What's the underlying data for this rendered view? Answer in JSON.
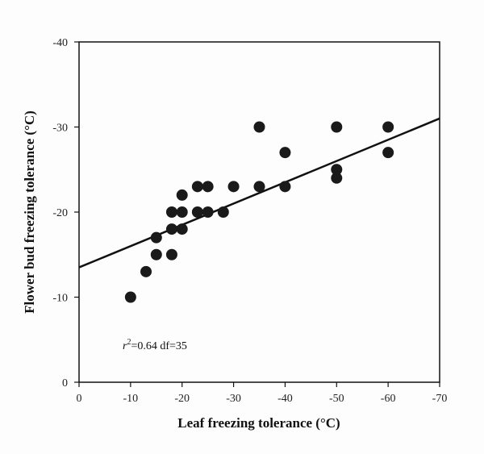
{
  "chart_data": {
    "type": "scatter",
    "xlabel": "Leaf freezing tolerance (°C)",
    "ylabel": "Flower bud freezing tolerance (°C)",
    "xlim": [
      0,
      -70
    ],
    "ylim": [
      0,
      -40
    ],
    "x_ticks": [
      "0",
      "-10",
      "-20",
      "-30",
      "-40",
      "-50",
      "-60",
      "-70"
    ],
    "x_tick_values": [
      0,
      -10,
      -20,
      -30,
      -40,
      -50,
      -60,
      -70
    ],
    "y_ticks": [
      "0",
      "-10",
      "-20",
      "-30",
      "-40"
    ],
    "y_tick_values": [
      0,
      -10,
      -20,
      -30,
      -40
    ],
    "grid": false,
    "points": {
      "x": [
        -10,
        -13,
        -15,
        -15,
        -18,
        -18,
        -18,
        -20,
        -20,
        -20,
        -23,
        -23,
        -25,
        -25,
        -28,
        -30,
        -35,
        -35,
        -40,
        -40,
        -50,
        -50,
        -50,
        -60,
        -60
      ],
      "y": [
        -10,
        -13,
        -15,
        -17,
        -15,
        -18,
        -20,
        -18,
        -20,
        -22,
        -20,
        -23,
        -20,
        -23,
        -20,
        -23,
        -30,
        -23,
        -27,
        -23,
        -30,
        -25,
        -24,
        -30,
        -27
      ]
    },
    "regression_line": {
      "x": [
        0,
        -70
      ],
      "y": [
        -13.5,
        -31
      ]
    },
    "annotation": {
      "r_symbol": "r",
      "r_exp": "2",
      "text": "=0.64  df=35"
    },
    "colors": {
      "points": "#1a1a1a",
      "line": "#111111"
    }
  }
}
